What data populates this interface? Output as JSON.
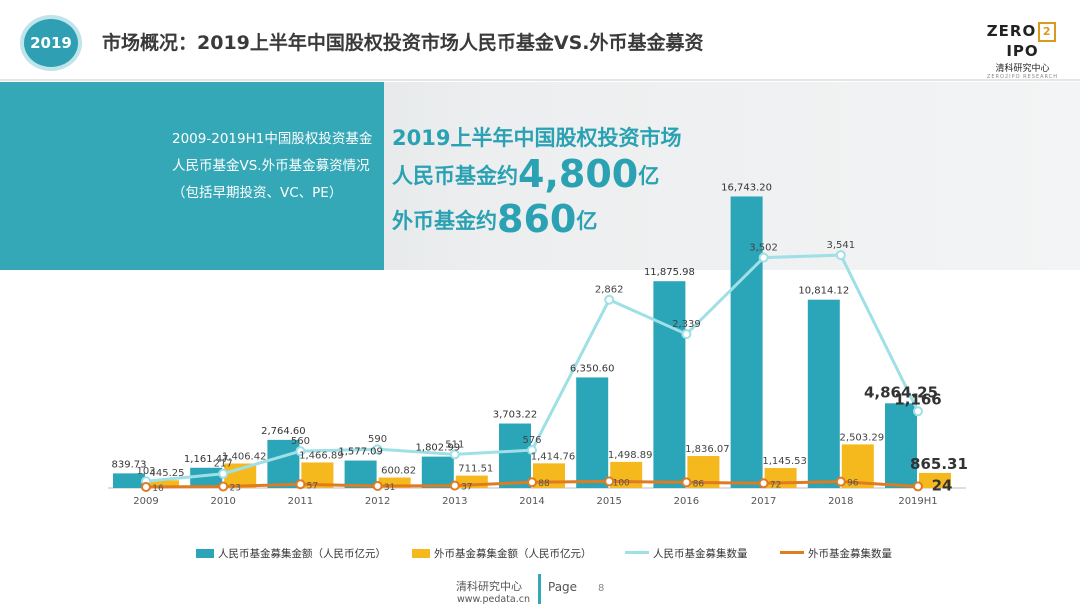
{
  "header": {
    "badge": "2019",
    "title": "市场概况：2019上半年中国股权投资市场人民币基金VS.外币基金募资",
    "logo_main_left": "ZERO",
    "logo_main_box": "2",
    "logo_main_right": "IPO",
    "logo_sub": "清科研究中心",
    "logo_tiny": "ZERO2IPO RESEARCH"
  },
  "panel": {
    "description": "2009-2019H1中国股权投资基金人民币基金VS.外币基金募资情况（包括早期投资、VC、PE）"
  },
  "headline": {
    "line1": "2019上半年中国股权投资市场",
    "line2_prefix": "人民币基金约",
    "line2_value": "4,800",
    "line2_unit": "亿",
    "line3_prefix": "外币基金约",
    "line3_value": "860",
    "line3_unit": "亿"
  },
  "colors": {
    "rmb_amount": "#2ba5b8",
    "fx_amount": "#f5b91d",
    "rmb_count": "#9fdfe6",
    "fx_count": "#e07b22",
    "teal_panel": "#35a8b8"
  },
  "chart_data": {
    "type": "bar",
    "categories": [
      "2009",
      "2010",
      "2011",
      "2012",
      "2013",
      "2014",
      "2015",
      "2016",
      "2017",
      "2018",
      "2019H1"
    ],
    "series": [
      {
        "name": "人民币基金募集金额（人民币亿元）",
        "kind": "bar",
        "values": [
          839.73,
          1161.47,
          2764.6,
          1577.09,
          1802.99,
          3703.22,
          6350.6,
          11875.98,
          16743.2,
          10814.12,
          4864.25
        ],
        "labels": [
          "839.73",
          "1,161.47",
          "2,764.60",
          "1,577.09",
          "1,802.99",
          "3,703.22",
          "6,350.60",
          "11,875.98",
          "16,743.20",
          "10,814.12",
          "4,864.25"
        ]
      },
      {
        "name": "外币基金募集金额（人民币亿元）",
        "kind": "bar",
        "values": [
          445.25,
          1406.42,
          1466.89,
          600.82,
          711.51,
          1414.76,
          1498.89,
          1836.07,
          1145.53,
          2503.29,
          865.31
        ],
        "labels": [
          "445.25",
          "1,406.42",
          "1,466.89",
          "600.82",
          "711.51",
          "1,414.76",
          "1,498.89",
          "1,836.07",
          "1,145.53",
          "2,503.29",
          "865.31"
        ]
      },
      {
        "name": "人民币基金募集数量",
        "kind": "line",
        "values": [
          103,
          217,
          560,
          590,
          511,
          576,
          2862,
          2339,
          3502,
          3541,
          1166
        ],
        "labels": [
          "103",
          "217",
          "560",
          "590",
          "511",
          "576",
          "2,862",
          "2,339",
          "3,502",
          "3,541",
          "1,166"
        ]
      },
      {
        "name": "外币基金募集数量",
        "kind": "line",
        "values": [
          16,
          23,
          57,
          31,
          37,
          88,
          100,
          86,
          72,
          96,
          24
        ],
        "labels": [
          "16",
          "23",
          "57",
          "31",
          "37",
          "88",
          "100",
          "86",
          "72",
          "96",
          "24"
        ]
      }
    ],
    "legend_position": "bottom",
    "ylim_amount": [
      0,
      17000
    ],
    "ylim_count": [
      0,
      4500
    ]
  },
  "footer": {
    "org": "清科研究中心",
    "url": "www.pedata.cn",
    "page_label": "Page",
    "page_number": "8"
  }
}
